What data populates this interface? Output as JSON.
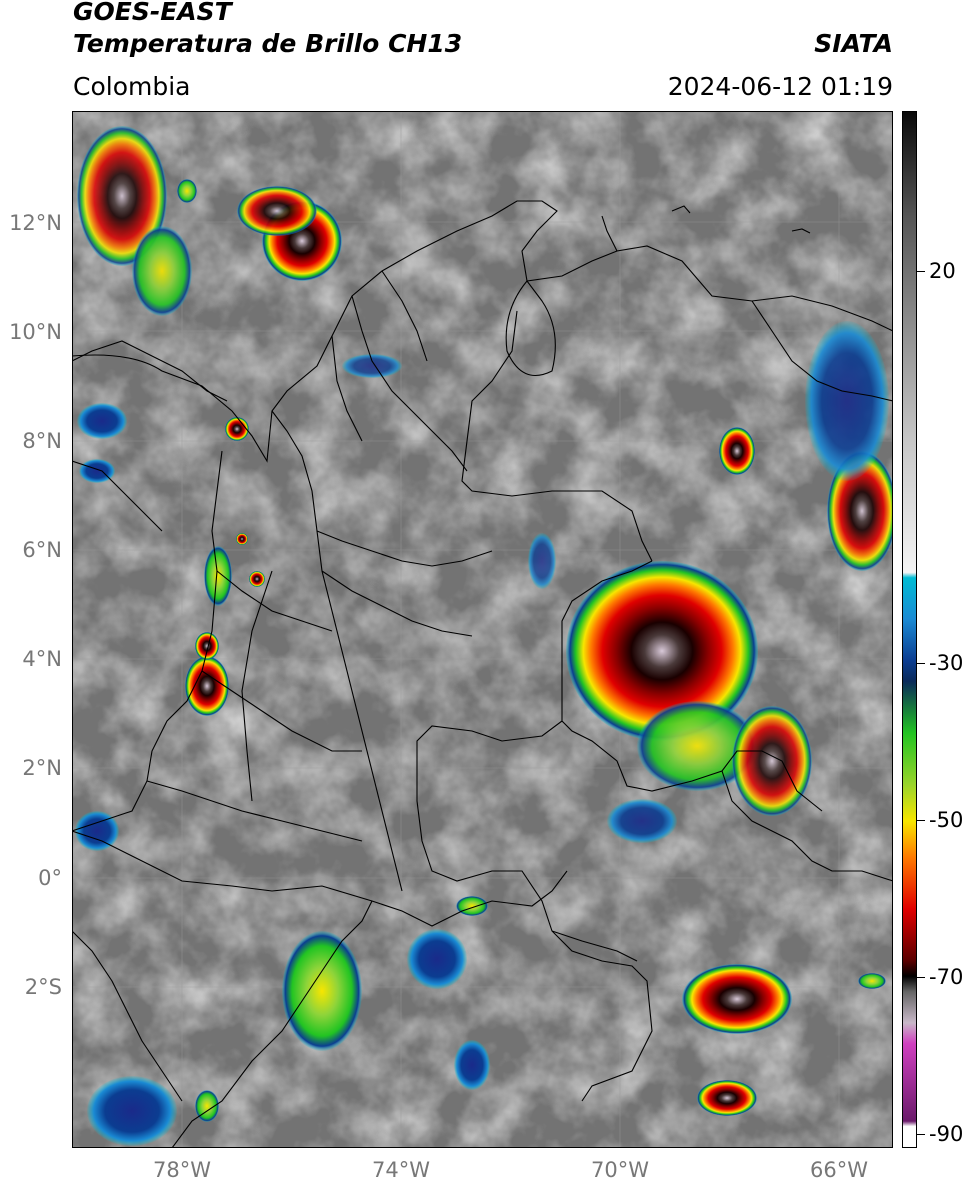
{
  "header": {
    "satellite": "GOES-EAST",
    "product": "Temperatura de Brillo CH13",
    "organization": "SIATA",
    "region": "Colombia",
    "datetime": "2024-06-12 01:19"
  },
  "map": {
    "lat_labels": [
      "12°N",
      "10°N",
      "8°N",
      "6°N",
      "4°N",
      "2°N",
      "0°",
      "2°S"
    ],
    "lon_labels": [
      "78°W",
      "74°W",
      "70°W",
      "66°W"
    ]
  },
  "colorbar": {
    "labels": [
      "20",
      "-30",
      "-50",
      "-70",
      "-90"
    ],
    "colors": {
      "warm_black": "#0a0a0a",
      "cyan": "#00bcd4",
      "blue": "#0b3d91",
      "green": "#22c422",
      "yellow": "#f7e600",
      "red": "#e00000",
      "magenta": "#d040c0",
      "white": "#ffffff"
    }
  }
}
